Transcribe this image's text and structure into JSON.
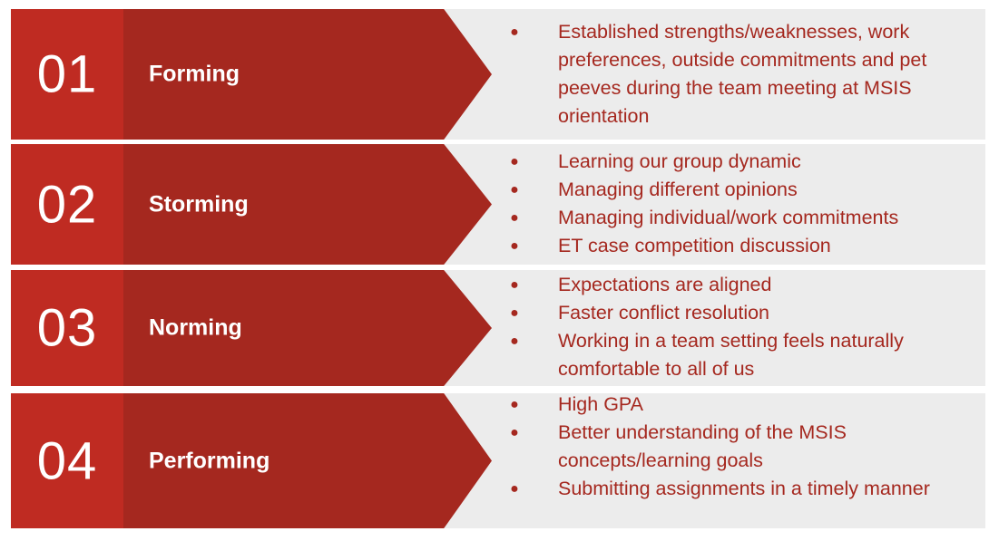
{
  "stages": [
    {
      "number": "01",
      "label": "Forming",
      "bullets": [
        "Established strengths/weaknesses, work preferences, outside commitments and pet peeves during the team meeting at MSIS orientation"
      ]
    },
    {
      "number": "02",
      "label": "Storming",
      "bullets": [
        "Learning our group dynamic",
        "Managing different opinions",
        "Managing individual/work commitments",
        "ET case competition discussion"
      ]
    },
    {
      "number": "03",
      "label": "Norming",
      "bullets": [
        "Expectations are aligned",
        "Faster conflict resolution",
        "Working in a team setting feels naturally comfortable to all of us"
      ]
    },
    {
      "number": "04",
      "label": "Performing",
      "bullets": [
        "High GPA",
        "Better understanding of the MSIS concepts/learning goals",
        "Submitting assignments in a timely manner"
      ]
    }
  ],
  "colors": {
    "number_box": "#bf2b22",
    "arrow": "#a5281f",
    "panel": "#ececec",
    "bullet_text": "#a5281f"
  }
}
